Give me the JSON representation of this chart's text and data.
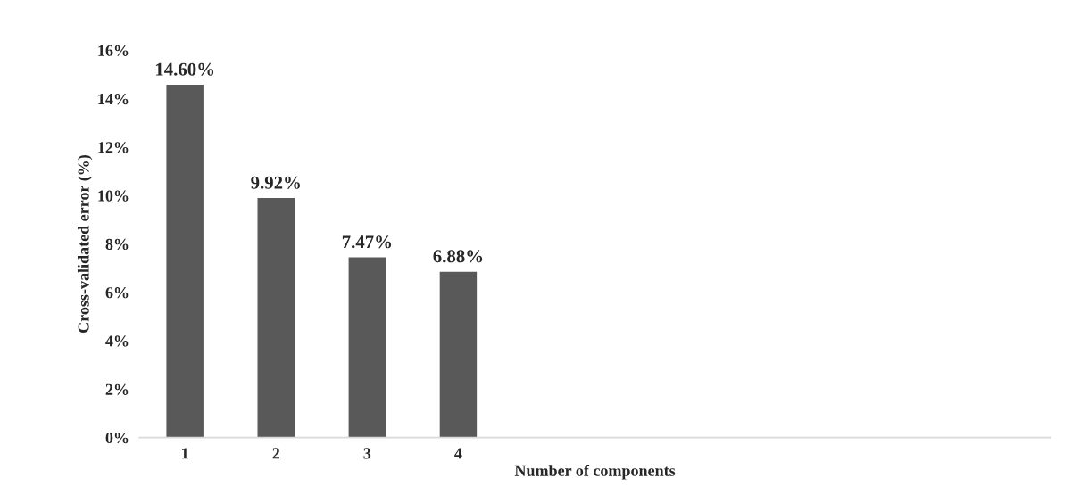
{
  "chart_data": {
    "type": "bar",
    "xlabel": "Number of components",
    "ylabel": "Cross-validated error (%)",
    "categories": [
      "1",
      "2",
      "3",
      "4",
      null,
      null,
      null,
      null,
      null,
      null
    ],
    "values": [
      14.6,
      9.92,
      7.47,
      6.88,
      null,
      null,
      null,
      null,
      null,
      null
    ],
    "value_labels": [
      "14.60%",
      "9.92%",
      "7.47%",
      "6.88%",
      null,
      null,
      null,
      null,
      null,
      null
    ],
    "color": "#595959",
    "ylim": [
      0,
      16
    ],
    "yticks": [
      {
        "value": 0,
        "label": "0%"
      },
      {
        "value": 2,
        "label": "2%"
      },
      {
        "value": 4,
        "label": "4%"
      },
      {
        "value": 6,
        "label": "6%"
      },
      {
        "value": 8,
        "label": "8%"
      },
      {
        "value": 10,
        "label": "10%"
      },
      {
        "value": 12,
        "label": "12%"
      },
      {
        "value": 14,
        "label": "14%"
      },
      {
        "value": 16,
        "label": "16%"
      }
    ],
    "grid": false,
    "legend": false
  }
}
